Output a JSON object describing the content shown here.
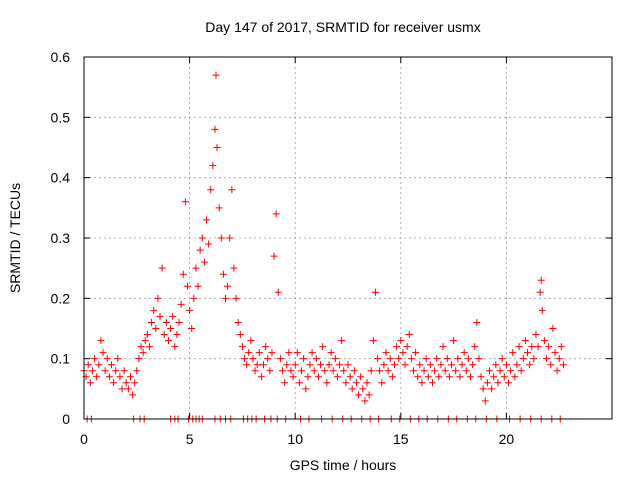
{
  "chart_data": {
    "type": "scatter",
    "title": "Day 147 of 2017, SRMTID for receiver usmx",
    "xlabel": "GPS time / hours",
    "ylabel": "SRMTID / TECUs",
    "xlim": [
      0,
      25
    ],
    "ylim": [
      0,
      0.6
    ],
    "xticks": [
      0,
      5,
      10,
      15,
      20
    ],
    "xtick_labels": [
      "0",
      "5",
      "10",
      "15",
      "20"
    ],
    "yticks": [
      0,
      0.1,
      0.2,
      0.3,
      0.4,
      0.5,
      0.6
    ],
    "ytick_labels": [
      "0",
      "0.1",
      "0.2",
      "0.3",
      "0.4",
      "0.5",
      "0.6"
    ],
    "grid": true,
    "marker": "+",
    "color": "#ff0000",
    "series": [
      {
        "name": "SRMTID",
        "points": [
          [
            0.0,
            0.08
          ],
          [
            0.1,
            0.07
          ],
          [
            0.2,
            0.09
          ],
          [
            0.3,
            0.06
          ],
          [
            0.4,
            0.08
          ],
          [
            0.5,
            0.1
          ],
          [
            0.6,
            0.07
          ],
          [
            0.7,
            0.09
          ],
          [
            0.8,
            0.13
          ],
          [
            0.9,
            0.11
          ],
          [
            1.0,
            0.08
          ],
          [
            1.1,
            0.1
          ],
          [
            1.2,
            0.07
          ],
          [
            1.3,
            0.09
          ],
          [
            1.4,
            0.06
          ],
          [
            1.5,
            0.08
          ],
          [
            1.6,
            0.1
          ],
          [
            1.7,
            0.07
          ],
          [
            1.8,
            0.05
          ],
          [
            1.9,
            0.08
          ],
          [
            2.0,
            0.06
          ],
          [
            2.1,
            0.05
          ],
          [
            2.2,
            0.07
          ],
          [
            2.3,
            0.04
          ],
          [
            2.4,
            0.06
          ],
          [
            2.5,
            0.08
          ],
          [
            2.6,
            0.1
          ],
          [
            2.7,
            0.12
          ],
          [
            2.8,
            0.11
          ],
          [
            2.9,
            0.13
          ],
          [
            3.0,
            0.14
          ],
          [
            3.1,
            0.12
          ],
          [
            3.2,
            0.16
          ],
          [
            3.3,
            0.18
          ],
          [
            3.4,
            0.15
          ],
          [
            3.5,
            0.2
          ],
          [
            3.6,
            0.17
          ],
          [
            3.7,
            0.25
          ],
          [
            3.8,
            0.14
          ],
          [
            3.9,
            0.16
          ],
          [
            4.0,
            0.13
          ],
          [
            4.1,
            0.15
          ],
          [
            4.2,
            0.17
          ],
          [
            4.3,
            0.12
          ],
          [
            4.4,
            0.14
          ],
          [
            4.5,
            0.16
          ],
          [
            4.6,
            0.19
          ],
          [
            4.7,
            0.24
          ],
          [
            4.8,
            0.36
          ],
          [
            4.9,
            0.22
          ],
          [
            5.0,
            0.18
          ],
          [
            5.1,
            0.15
          ],
          [
            5.2,
            0.2
          ],
          [
            5.3,
            0.25
          ],
          [
            5.4,
            0.22
          ],
          [
            5.5,
            0.28
          ],
          [
            5.6,
            0.3
          ],
          [
            5.7,
            0.26
          ],
          [
            5.8,
            0.33
          ],
          [
            5.9,
            0.29
          ],
          [
            6.0,
            0.38
          ],
          [
            6.1,
            0.42
          ],
          [
            6.2,
            0.48
          ],
          [
            6.25,
            0.57
          ],
          [
            6.3,
            0.45
          ],
          [
            6.4,
            0.35
          ],
          [
            6.5,
            0.3
          ],
          [
            6.6,
            0.24
          ],
          [
            6.7,
            0.2
          ],
          [
            6.8,
            0.22
          ],
          [
            6.9,
            0.3
          ],
          [
            7.0,
            0.38
          ],
          [
            7.1,
            0.25
          ],
          [
            7.2,
            0.2
          ],
          [
            7.3,
            0.16
          ],
          [
            7.4,
            0.14
          ],
          [
            7.5,
            0.12
          ],
          [
            7.6,
            0.1
          ],
          [
            7.7,
            0.09
          ],
          [
            7.8,
            0.11
          ],
          [
            7.9,
            0.13
          ],
          [
            8.0,
            0.1
          ],
          [
            8.1,
            0.08
          ],
          [
            8.2,
            0.09
          ],
          [
            8.3,
            0.11
          ],
          [
            8.4,
            0.07
          ],
          [
            8.5,
            0.09
          ],
          [
            8.6,
            0.12
          ],
          [
            8.7,
            0.1
          ],
          [
            8.8,
            0.08
          ],
          [
            8.9,
            0.11
          ],
          [
            9.0,
            0.27
          ],
          [
            9.1,
            0.34
          ],
          [
            9.2,
            0.21
          ],
          [
            9.3,
            0.1
          ],
          [
            9.4,
            0.08
          ],
          [
            9.5,
            0.06
          ],
          [
            9.6,
            0.09
          ],
          [
            9.7,
            0.11
          ],
          [
            9.8,
            0.08
          ],
          [
            9.9,
            0.07
          ],
          [
            10.0,
            0.09
          ],
          [
            10.1,
            0.11
          ],
          [
            10.2,
            0.06
          ],
          [
            10.3,
            0.08
          ],
          [
            10.4,
            0.1
          ],
          [
            10.5,
            0.05
          ],
          [
            10.6,
            0.07
          ],
          [
            10.7,
            0.09
          ],
          [
            10.8,
            0.11
          ],
          [
            10.9,
            0.08
          ],
          [
            11.0,
            0.1
          ],
          [
            11.1,
            0.07
          ],
          [
            11.2,
            0.09
          ],
          [
            11.3,
            0.12
          ],
          [
            11.4,
            0.08
          ],
          [
            11.5,
            0.06
          ],
          [
            11.6,
            0.09
          ],
          [
            11.7,
            0.11
          ],
          [
            11.8,
            0.08
          ],
          [
            11.9,
            0.1
          ],
          [
            12.0,
            0.07
          ],
          [
            12.1,
            0.09
          ],
          [
            12.2,
            0.13
          ],
          [
            12.3,
            0.08
          ],
          [
            12.4,
            0.06
          ],
          [
            12.5,
            0.09
          ],
          [
            12.6,
            0.07
          ],
          [
            12.7,
            0.05
          ],
          [
            12.8,
            0.08
          ],
          [
            12.9,
            0.06
          ],
          [
            13.0,
            0.04
          ],
          [
            13.1,
            0.07
          ],
          [
            13.2,
            0.05
          ],
          [
            13.3,
            0.03
          ],
          [
            13.4,
            0.06
          ],
          [
            13.5,
            0.04
          ],
          [
            13.6,
            0.08
          ],
          [
            13.7,
            0.13
          ],
          [
            13.8,
            0.21
          ],
          [
            13.9,
            0.1
          ],
          [
            14.0,
            0.08
          ],
          [
            14.1,
            0.06
          ],
          [
            14.2,
            0.09
          ],
          [
            14.3,
            0.11
          ],
          [
            14.4,
            0.08
          ],
          [
            14.5,
            0.1
          ],
          [
            14.6,
            0.07
          ],
          [
            14.7,
            0.09
          ],
          [
            14.8,
            0.12
          ],
          [
            14.9,
            0.1
          ],
          [
            15.0,
            0.13
          ],
          [
            15.1,
            0.11
          ],
          [
            15.2,
            0.09
          ],
          [
            15.3,
            0.12
          ],
          [
            15.4,
            0.14
          ],
          [
            15.5,
            0.1
          ],
          [
            15.6,
            0.08
          ],
          [
            15.7,
            0.11
          ],
          [
            15.8,
            0.07
          ],
          [
            15.9,
            0.09
          ],
          [
            16.0,
            0.06
          ],
          [
            16.1,
            0.08
          ],
          [
            16.2,
            0.1
          ],
          [
            16.3,
            0.07
          ],
          [
            16.4,
            0.09
          ],
          [
            16.5,
            0.06
          ],
          [
            16.6,
            0.08
          ],
          [
            16.7,
            0.1
          ],
          [
            16.8,
            0.07
          ],
          [
            16.9,
            0.09
          ],
          [
            17.0,
            0.12
          ],
          [
            17.1,
            0.08
          ],
          [
            17.2,
            0.1
          ],
          [
            17.3,
            0.07
          ],
          [
            17.4,
            0.09
          ],
          [
            17.5,
            0.13
          ],
          [
            17.6,
            0.08
          ],
          [
            17.7,
            0.1
          ],
          [
            17.8,
            0.07
          ],
          [
            17.9,
            0.09
          ],
          [
            18.0,
            0.11
          ],
          [
            18.1,
            0.08
          ],
          [
            18.2,
            0.1
          ],
          [
            18.3,
            0.07
          ],
          [
            18.4,
            0.09
          ],
          [
            18.5,
            0.12
          ],
          [
            18.6,
            0.16
          ],
          [
            18.7,
            0.1
          ],
          [
            18.8,
            0.07
          ],
          [
            18.9,
            0.05
          ],
          [
            19.0,
            0.03
          ],
          [
            19.1,
            0.06
          ],
          [
            19.2,
            0.08
          ],
          [
            19.3,
            0.05
          ],
          [
            19.4,
            0.07
          ],
          [
            19.5,
            0.09
          ],
          [
            19.6,
            0.06
          ],
          [
            19.7,
            0.08
          ],
          [
            19.8,
            0.1
          ],
          [
            19.9,
            0.07
          ],
          [
            20.0,
            0.09
          ],
          [
            20.1,
            0.06
          ],
          [
            20.2,
            0.08
          ],
          [
            20.3,
            0.11
          ],
          [
            20.4,
            0.07
          ],
          [
            20.5,
            0.09
          ],
          [
            20.6,
            0.12
          ],
          [
            20.7,
            0.08
          ],
          [
            20.8,
            0.1
          ],
          [
            20.9,
            0.13
          ],
          [
            21.0,
            0.11
          ],
          [
            21.1,
            0.09
          ],
          [
            21.2,
            0.12
          ],
          [
            21.3,
            0.1
          ],
          [
            21.4,
            0.14
          ],
          [
            21.5,
            0.12
          ],
          [
            21.6,
            0.21
          ],
          [
            21.65,
            0.23
          ],
          [
            21.7,
            0.18
          ],
          [
            21.8,
            0.13
          ],
          [
            21.9,
            0.1
          ],
          [
            22.0,
            0.12
          ],
          [
            22.1,
            0.09
          ],
          [
            22.2,
            0.15
          ],
          [
            22.3,
            0.11
          ],
          [
            22.4,
            0.08
          ],
          [
            22.5,
            0.1
          ],
          [
            22.6,
            0.12
          ],
          [
            22.7,
            0.09
          ],
          [
            0.15,
            0.0
          ],
          [
            0.35,
            0.0
          ],
          [
            2.35,
            0.0
          ],
          [
            2.65,
            0.0
          ],
          [
            2.85,
            0.0
          ],
          [
            4.1,
            0.0
          ],
          [
            4.3,
            0.0
          ],
          [
            4.45,
            0.0
          ],
          [
            4.95,
            0.0
          ],
          [
            5.15,
            0.0
          ],
          [
            5.3,
            0.0
          ],
          [
            5.45,
            0.0
          ],
          [
            5.6,
            0.0
          ],
          [
            6.2,
            0.0
          ],
          [
            6.45,
            0.0
          ],
          [
            6.7,
            0.0
          ],
          [
            6.95,
            0.0
          ],
          [
            7.55,
            0.0
          ],
          [
            7.75,
            0.0
          ],
          [
            7.95,
            0.0
          ],
          [
            8.15,
            0.0
          ],
          [
            8.55,
            0.0
          ],
          [
            8.85,
            0.0
          ],
          [
            9.15,
            0.0
          ],
          [
            9.55,
            0.0
          ],
          [
            10.25,
            0.0
          ],
          [
            10.65,
            0.0
          ],
          [
            11.25,
            0.0
          ],
          [
            11.75,
            0.0
          ],
          [
            12.25,
            0.0
          ],
          [
            12.65,
            0.0
          ],
          [
            13.15,
            0.0
          ],
          [
            13.55,
            0.0
          ],
          [
            13.95,
            0.0
          ],
          [
            14.55,
            0.0
          ],
          [
            14.95,
            0.0
          ],
          [
            15.45,
            0.0
          ],
          [
            15.85,
            0.0
          ],
          [
            16.25,
            0.0
          ],
          [
            16.75,
            0.0
          ],
          [
            17.25,
            0.0
          ],
          [
            17.65,
            0.0
          ],
          [
            18.15,
            0.0
          ],
          [
            18.55,
            0.0
          ],
          [
            19.05,
            0.0
          ],
          [
            19.55,
            0.0
          ],
          [
            20.15,
            0.0
          ],
          [
            20.65,
            0.0
          ],
          [
            21.15,
            0.0
          ],
          [
            21.65,
            0.0
          ],
          [
            22.15,
            0.0
          ],
          [
            22.55,
            0.0
          ]
        ]
      }
    ]
  }
}
